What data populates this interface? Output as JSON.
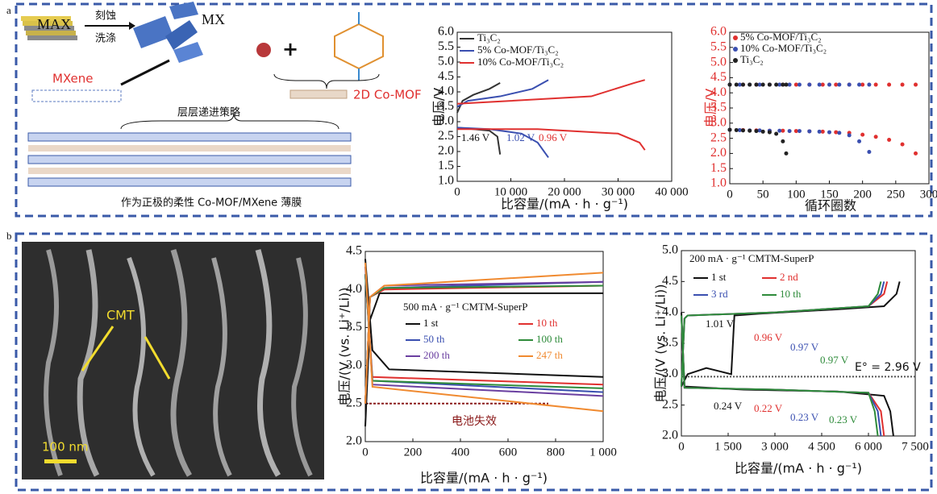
{
  "figure": {
    "panel_a": "a",
    "panel_b": "b",
    "schematic": {
      "max": "MAX",
      "etch": "刻蚀",
      "wash": "洗涤",
      "mx": "MX",
      "mxene": "MXene",
      "mof": "2D Co-MOF",
      "strategy": "层层递进策略",
      "caption": "作为正极的柔性 Co-MOF/MXene 薄膜"
    },
    "sem": {
      "label": "CMT",
      "scale": "100 nm"
    }
  },
  "chart_data": [
    {
      "type": "line",
      "x_label": "比容量/(mA · h · g⁻¹)",
      "y_label": "电压/V",
      "xlim": [
        0,
        40000
      ],
      "xticks": [
        0,
        {
          "value": 10000,
          "label": "10 000"
        },
        {
          "value": 20000,
          "label": "20 000"
        },
        {
          "value": 30000,
          "label": "30 000"
        },
        {
          "value": 40000,
          "label": "40 000"
        }
      ],
      "ylim": [
        1,
        6
      ],
      "yticks": [
        {
          "value": 1,
          "label": "1.0"
        },
        {
          "value": 1.5,
          "label": "1.5"
        },
        {
          "value": 2,
          "label": "2.0"
        },
        {
          "value": 2.5,
          "label": "2.5"
        },
        {
          "value": 3,
          "label": "3.0"
        },
        {
          "value": 3.5,
          "label": "3.5"
        },
        {
          "value": 4,
          "label": "4.0"
        },
        {
          "value": 4.5,
          "label": "4.5"
        },
        {
          "value": 5,
          "label": "5.0"
        },
        {
          "value": 5.5,
          "label": "5.5"
        },
        {
          "value": 6,
          "label": "6.0"
        }
      ],
      "series": [
        {
          "name": "Ti₃C₂",
          "color": "#333333",
          "x": [
            0,
            1000,
            3000,
            6000,
            8000,
            null,
            0,
            3000,
            6000,
            7500,
            8000
          ],
          "values": [
            3.3,
            3.7,
            3.9,
            4.1,
            4.3,
            null,
            2.8,
            2.75,
            2.7,
            2.5,
            1.9
          ]
        },
        {
          "name": "5% Co-MOF/Ti₃C₂",
          "color": "#3a4fb0",
          "x": [
            0,
            2000,
            8000,
            14000,
            17000,
            null,
            0,
            6000,
            12000,
            15000,
            17000
          ],
          "values": [
            3.5,
            3.7,
            3.85,
            4.1,
            4.4,
            null,
            2.8,
            2.75,
            2.6,
            2.3,
            1.8
          ]
        },
        {
          "name": "10% Co-MOF/Ti₃C₂",
          "color": "#e0302f",
          "x": [
            0,
            10000,
            25000,
            33000,
            35000,
            null,
            0,
            15000,
            30000,
            34000,
            35000
          ],
          "values": [
            3.6,
            3.7,
            3.85,
            4.3,
            4.4,
            null,
            2.75,
            2.75,
            2.6,
            2.3,
            2.05
          ]
        }
      ],
      "annotations": [
        "1.46 V",
        "1.02 V",
        "0.96 V"
      ]
    },
    {
      "type": "scatter",
      "x_label": "循环圈数",
      "y_label": "电压/V",
      "y_axis_color": "#e0302f",
      "xlim": [
        0,
        300
      ],
      "xticks": [
        0,
        50,
        100,
        150,
        200,
        250,
        300
      ],
      "ylim": [
        1,
        6
      ],
      "yticks": [
        {
          "value": 1,
          "label": "1.0"
        },
        {
          "value": 1.5,
          "label": "1.5"
        },
        {
          "value": 2,
          "label": "2.0"
        },
        {
          "value": 2.5,
          "label": "2.5"
        },
        {
          "value": 3,
          "label": "3.0"
        },
        {
          "value": 3.5,
          "label": "3.5"
        },
        {
          "value": 4,
          "label": "4.0"
        },
        {
          "value": 4.5,
          "label": "4.5"
        },
        {
          "value": 5,
          "label": "5.0"
        },
        {
          "value": 5.5,
          "label": "5.5"
        },
        {
          "value": 6,
          "label": "6.0"
        }
      ],
      "series": [
        {
          "name": "5% Co-MOF/Ti₃C₂",
          "color": "#e0302f",
          "x": [
            0,
            20,
            40,
            60,
            80,
            100,
            120,
            140,
            160,
            180,
            200,
            220,
            240,
            260,
            280
          ],
          "values": [
            2.78,
            2.77,
            2.76,
            2.75,
            2.75,
            2.74,
            2.73,
            2.72,
            2.7,
            2.68,
            2.62,
            2.55,
            2.45,
            2.3,
            2.0
          ],
          "values_charge": [
            4.27,
            4.27,
            4.27,
            4.27,
            4.27,
            4.27,
            4.27,
            4.27,
            4.27,
            4.27,
            4.27,
            4.27,
            4.27,
            4.27,
            4.27
          ]
        },
        {
          "name": "10% Co-MOF/Ti₃C₂",
          "color": "#3a4fb0",
          "x": [
            0,
            15,
            30,
            45,
            60,
            75,
            90,
            105,
            120,
            135,
            150,
            165,
            180,
            195,
            210
          ],
          "values": [
            2.78,
            2.77,
            2.76,
            2.76,
            2.75,
            2.75,
            2.74,
            2.74,
            2.73,
            2.72,
            2.7,
            2.68,
            2.6,
            2.4,
            2.05
          ],
          "values_charge": [
            4.27,
            4.27,
            4.27,
            4.27,
            4.27,
            4.27,
            4.27,
            4.27,
            4.27,
            4.27,
            4.27,
            4.27,
            4.27,
            4.27,
            4.27
          ]
        },
        {
          "name": "Ti₃C₂",
          "color": "#222222",
          "x": [
            0,
            10,
            20,
            30,
            40,
            50,
            60,
            70,
            80,
            85
          ],
          "values": [
            2.78,
            2.77,
            2.76,
            2.75,
            2.74,
            2.72,
            2.7,
            2.65,
            2.4,
            2.0
          ],
          "values_charge": [
            4.27,
            4.27,
            4.27,
            4.27,
            4.27,
            4.27,
            4.27,
            4.27,
            4.27,
            4.27
          ]
        }
      ]
    },
    {
      "type": "line",
      "x_label": "比容量/(mA · h · g⁻¹)",
      "y_label": "电压/(V (vs. Li⁺/Li))",
      "xlim": [
        0,
        1000
      ],
      "xticks": [
        0,
        200,
        400,
        600,
        800,
        {
          "value": 1000,
          "label": "1 000"
        }
      ],
      "ylim": [
        2,
        4.5
      ],
      "yticks": [
        {
          "value": 2,
          "label": "2.0"
        },
        {
          "value": 2.5,
          "label": "2.5"
        },
        {
          "value": 3,
          "label": "3.0"
        },
        {
          "value": 3.5,
          "label": "3.5"
        },
        {
          "value": 4,
          "label": "4.0"
        },
        {
          "value": 4.5,
          "label": "4.5"
        }
      ],
      "series": [
        {
          "name": "1 st",
          "color": "#111111",
          "x": [
            0,
            20,
            60,
            1000,
            null,
            0,
            30,
            100,
            1000
          ],
          "values": [
            2.2,
            3.6,
            3.95,
            3.95,
            null,
            4.4,
            3.2,
            2.95,
            2.85
          ]
        },
        {
          "name": "10 th",
          "color": "#e0302f",
          "x": [
            0,
            20,
            80,
            1000,
            null,
            0,
            30,
            1000
          ],
          "values": [
            2.5,
            3.9,
            4.0,
            4.05,
            null,
            4.2,
            2.85,
            2.75
          ]
        },
        {
          "name": "50 th",
          "color": "#3a4fb0",
          "x": [
            0,
            20,
            80,
            1000,
            null,
            0,
            30,
            1000
          ],
          "values": [
            2.5,
            3.9,
            4.02,
            4.1,
            null,
            4.2,
            2.8,
            2.65
          ]
        },
        {
          "name": "100 th",
          "color": "#2e8b3a",
          "x": [
            0,
            20,
            80,
            1000,
            null,
            0,
            30,
            1000
          ],
          "values": [
            2.5,
            3.9,
            4.02,
            4.05,
            null,
            4.2,
            2.8,
            2.7
          ]
        },
        {
          "name": "200 th",
          "color": "#6a3fa0",
          "x": [
            0,
            20,
            80,
            1000,
            null,
            0,
            30,
            1000
          ],
          "values": [
            2.5,
            3.9,
            4.05,
            4.1,
            null,
            4.3,
            2.75,
            2.6
          ]
        },
        {
          "name": "247 th",
          "color": "#f08a30",
          "x": [
            0,
            20,
            80,
            1000,
            null,
            0,
            30,
            1000
          ],
          "values": [
            2.5,
            3.9,
            4.05,
            4.22,
            null,
            4.35,
            2.72,
            2.4
          ]
        }
      ],
      "annotations": [
        "500 mA · g⁻¹ CMTM-SuperP"
      ],
      "ref_line": {
        "value": 2.5,
        "label": "电池失效"
      }
    },
    {
      "type": "line",
      "x_label": "比容量/(mA · h · g⁻¹)",
      "y_label": "电压/(V (vs. Li⁺/Li))",
      "xlim": [
        0,
        7500
      ],
      "xticks": [
        0,
        {
          "value": 1500,
          "label": "1 500"
        },
        {
          "value": 3000,
          "label": "3 000"
        },
        {
          "value": 4500,
          "label": "4 500"
        },
        {
          "value": 6000,
          "label": "6 000"
        },
        {
          "value": 7500,
          "label": "7 500"
        }
      ],
      "ylim": [
        2,
        5
      ],
      "yticks": [
        {
          "value": 2,
          "label": "2.0"
        },
        {
          "value": 2.5,
          "label": "2.5"
        },
        {
          "value": 3,
          "label": "3.0"
        },
        {
          "value": 3.5,
          "label": "3.5"
        },
        {
          "value": 4,
          "label": "4.0"
        },
        {
          "value": 4.5,
          "label": "4.5"
        },
        {
          "value": 5,
          "label": "5.0"
        }
      ],
      "series": [
        {
          "name": "1 st",
          "color": "#111111",
          "x": [
            0,
            200,
            800,
            1600,
            1700,
            2500,
            5000,
            6500,
            6900,
            7000,
            null,
            0,
            100,
            2000,
            5000,
            6500,
            6700,
            6800
          ],
          "values": [
            2.8,
            3.0,
            3.1,
            3.0,
            3.95,
            3.98,
            4.05,
            4.1,
            4.3,
            4.5,
            null,
            4.0,
            2.8,
            2.75,
            2.72,
            2.65,
            2.4,
            2.0
          ]
        },
        {
          "name": "2 nd",
          "color": "#e0302f",
          "x": [
            0,
            100,
            200,
            3000,
            6000,
            6500,
            6600,
            null,
            0,
            100,
            3000,
            6000,
            6400,
            6500
          ],
          "values": [
            2.8,
            3.9,
            3.95,
            4.0,
            4.1,
            4.3,
            4.5,
            null,
            3.95,
            2.78,
            2.75,
            2.7,
            2.4,
            2.0
          ]
        },
        {
          "name": "3 rd",
          "color": "#3a4fb0",
          "x": [
            0,
            100,
            200,
            3000,
            6000,
            6400,
            6500,
            null,
            0,
            100,
            3000,
            6000,
            6300,
            6400
          ],
          "values": [
            2.8,
            3.9,
            3.95,
            4.0,
            4.1,
            4.3,
            4.5,
            null,
            3.95,
            2.78,
            2.75,
            2.7,
            2.4,
            2.0
          ]
        },
        {
          "name": "10 th",
          "color": "#2e8b3a",
          "x": [
            0,
            100,
            200,
            3000,
            6000,
            6300,
            6400,
            null,
            0,
            100,
            3000,
            6000,
            6200,
            6300
          ],
          "values": [
            2.8,
            3.9,
            3.95,
            4.0,
            4.1,
            4.3,
            4.5,
            null,
            3.95,
            2.78,
            2.75,
            2.7,
            2.4,
            2.0
          ]
        }
      ],
      "annotations": [
        "200 mA · g⁻¹ CMTM-SuperP",
        "1.01 V",
        "0.96 V",
        "0.97 V",
        "0.97 V",
        "0.24 V",
        "0.22 V",
        "0.23 V",
        "0.23 V"
      ],
      "ref_line": {
        "value": 2.96,
        "label": "E° = 2.96 V"
      }
    }
  ]
}
